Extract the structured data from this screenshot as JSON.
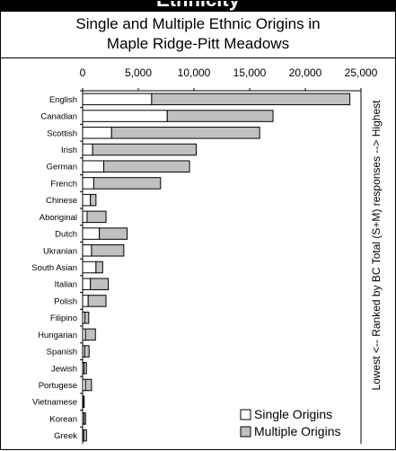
{
  "banner": {
    "text": "Ethnicity"
  },
  "chart_data": {
    "type": "bar",
    "orientation": "horizontal",
    "stacked": true,
    "title": "Single and Multiple Ethnic Origins in Maple Ridge-Pitt Meadows",
    "title_lines": [
      "Single and Multiple Ethnic Origins in",
      "Maple Ridge-Pitt Meadows"
    ],
    "categories": [
      "English",
      "Canadian",
      "Scottish",
      "Irish",
      "German",
      "French",
      "Chinese",
      "Aboriginal",
      "Dutch",
      "Ukranian",
      "South Asian",
      "Italian",
      "Polish",
      "Filipino",
      "Hungarian",
      "Spanish",
      "Jewish",
      "Portugese",
      "Vietnamese",
      "Korean",
      "Greek"
    ],
    "series": [
      {
        "name": "Single Origins",
        "color": "#ffffff",
        "values": [
          6200,
          7600,
          2600,
          900,
          1900,
          1000,
          700,
          400,
          1500,
          800,
          1200,
          700,
          500,
          200,
          250,
          180,
          120,
          250,
          80,
          120,
          100
        ]
      },
      {
        "name": "Multiple Origins",
        "color": "#c0c0c0",
        "values": [
          17800,
          9500,
          13300,
          9300,
          7700,
          6000,
          500,
          1700,
          2500,
          2900,
          600,
          1600,
          1600,
          350,
          900,
          400,
          220,
          550,
          60,
          150,
          250
        ]
      }
    ],
    "x_ticks": [
      "0",
      "5,000",
      "10,000",
      "15,000",
      "20,000",
      "25,000"
    ],
    "xlim": [
      0,
      25000
    ],
    "grid": false,
    "legend_position": "bottom-right",
    "side_note": "Lowest <-- Ranked by BC Total (S+M) responses --> Highest"
  }
}
